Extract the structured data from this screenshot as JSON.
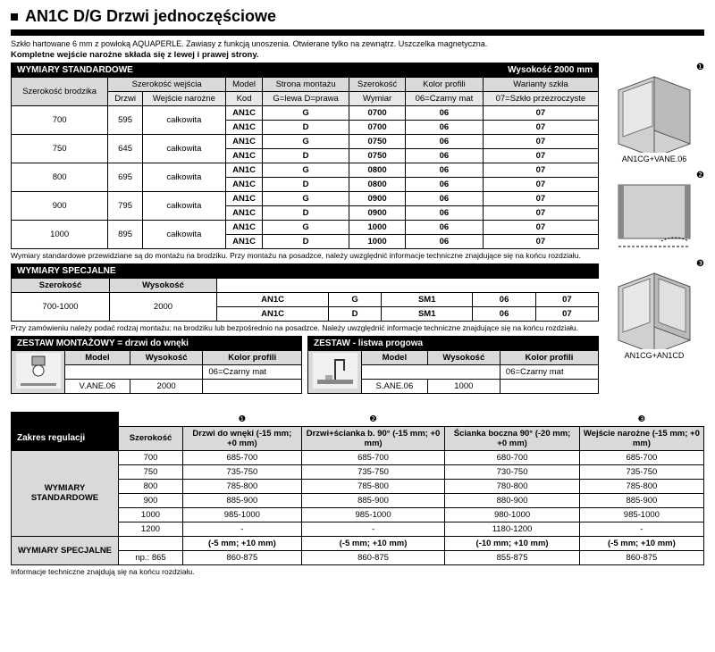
{
  "title": "AN1C D/G  Drzwi jednoczęściowe",
  "desc": "Szkło hartowane 6 mm z powłoką AQUAPERLE. Zawiasy z funkcją unoszenia. Otwierane tylko na zewnątrz. Uszczelka magnetyczna.",
  "desc_bold": "Kompletne wejście narożne składa się z lewej i prawej strony.",
  "std_header": "WYMIARY STANDARDOWE",
  "height_header": "Wysokość 2000 mm",
  "cols": {
    "tray": "Szerokość brodzika",
    "entry": "Szerokość wejścia",
    "door": "Drzwi",
    "corner": "Wejście narożne",
    "model": "Model",
    "code": "Kod",
    "side": "Strona montażu",
    "side_sub": "G=lewa D=prawa",
    "width": "Szerokość",
    "dim": "Wymiar",
    "profile": "Kolor profili",
    "profile_sub": "06=Czarny mat",
    "glass": "Warianty szkła",
    "glass_sub": "07=Szkło przezroczyste"
  },
  "std_rows": [
    {
      "tray": "700",
      "door": "595",
      "corner": "całkowita",
      "rows": [
        [
          "AN1C",
          "G",
          "0700",
          "06",
          "07"
        ],
        [
          "AN1C",
          "D",
          "0700",
          "06",
          "07"
        ]
      ]
    },
    {
      "tray": "750",
      "door": "645",
      "corner": "całkowita",
      "rows": [
        [
          "AN1C",
          "G",
          "0750",
          "06",
          "07"
        ],
        [
          "AN1C",
          "D",
          "0750",
          "06",
          "07"
        ]
      ]
    },
    {
      "tray": "800",
      "door": "695",
      "corner": "całkowita",
      "rows": [
        [
          "AN1C",
          "G",
          "0800",
          "06",
          "07"
        ],
        [
          "AN1C",
          "D",
          "0800",
          "06",
          "07"
        ]
      ]
    },
    {
      "tray": "900",
      "door": "795",
      "corner": "całkowita",
      "rows": [
        [
          "AN1C",
          "G",
          "0900",
          "06",
          "07"
        ],
        [
          "AN1C",
          "D",
          "0900",
          "06",
          "07"
        ]
      ]
    },
    {
      "tray": "1000",
      "door": "895",
      "corner": "całkowita",
      "rows": [
        [
          "AN1C",
          "G",
          "1000",
          "06",
          "07"
        ],
        [
          "AN1C",
          "D",
          "1000",
          "06",
          "07"
        ]
      ]
    }
  ],
  "footnote1": "Wymiary standardowe przewidziane są do montażu na brodziku. Przy montażu na posadzce, należy uwzględnić informacje techniczne znajdujące się na końcu rozdziału.",
  "spec_header": "WYMIARY SPECJALNE",
  "spec_cols": {
    "width": "Szerokość",
    "height": "Wysokość"
  },
  "spec_main": {
    "width": "700-1000",
    "height": "2000"
  },
  "spec_rows": [
    [
      "AN1C",
      "G",
      "SM1",
      "06",
      "07"
    ],
    [
      "AN1C",
      "D",
      "SM1",
      "06",
      "07"
    ]
  ],
  "footnote2": "Przy zamówieniu należy podać rodzaj montażu: na brodziku lub bezpośrednio na posadzce. Należy uwzględnić informacje techniczne znajdujące się na końcu rozdziału.",
  "kit1": {
    "header": "ZESTAW MONTAŻOWY = drzwi do wnęki",
    "cols": [
      "Model",
      "Wysokość",
      "Kolor profili"
    ],
    "color": "06=Czarny mat",
    "model": "V.ANE.06",
    "height": "2000"
  },
  "kit2": {
    "header": "ZESTAW - listwa progowa",
    "cols": [
      "Model",
      "Wysokość",
      "Kolor profili"
    ],
    "color": "06=Czarny mat",
    "model": "S.ANE.06",
    "height": "1000"
  },
  "diagrams": [
    {
      "num": "❶",
      "label": "AN1CG+VANE.06"
    },
    {
      "num": "❷",
      "label": ""
    },
    {
      "num": "❸",
      "label": "AN1CG+AN1CD"
    }
  ],
  "adj": {
    "header": "Zakres regulacji",
    "bullets": [
      "❶",
      "❷",
      "",
      "❸"
    ],
    "cols": [
      "Szerokość",
      "Drzwi do wnęki (-15 mm; +0 mm)",
      "Drzwi+ścianka b. 90° (-15 mm; +0 mm)",
      "Ścianka boczna 90° (-20 mm; +0 mm)",
      "Wejście narożne (-15 mm; +0 mm)"
    ],
    "std_label": "WYMIARY STANDARDOWE",
    "rows": [
      [
        "700",
        "685-700",
        "685-700",
        "680-700",
        "685-700"
      ],
      [
        "750",
        "735-750",
        "735-750",
        "730-750",
        "735-750"
      ],
      [
        "800",
        "785-800",
        "785-800",
        "780-800",
        "785-800"
      ],
      [
        "900",
        "885-900",
        "885-900",
        "880-900",
        "885-900"
      ],
      [
        "1000",
        "985-1000",
        "985-1000",
        "980-1000",
        "985-1000"
      ],
      [
        "1200",
        "-",
        "-",
        "1180-1200",
        "-"
      ]
    ],
    "spec_label": "WYMIARY SPECJALNE",
    "spec_cols": [
      "",
      "(-5 mm; +10 mm)",
      "(-5 mm; +10 mm)",
      "(-10 mm; +10 mm)",
      "(-5 mm; +10 mm)"
    ],
    "spec_row": [
      "np.: 865",
      "860-875",
      "860-875",
      "855-875",
      "860-875"
    ]
  },
  "footnote3": "Informacje  techniczne znajdują się na końcu rozdziału."
}
